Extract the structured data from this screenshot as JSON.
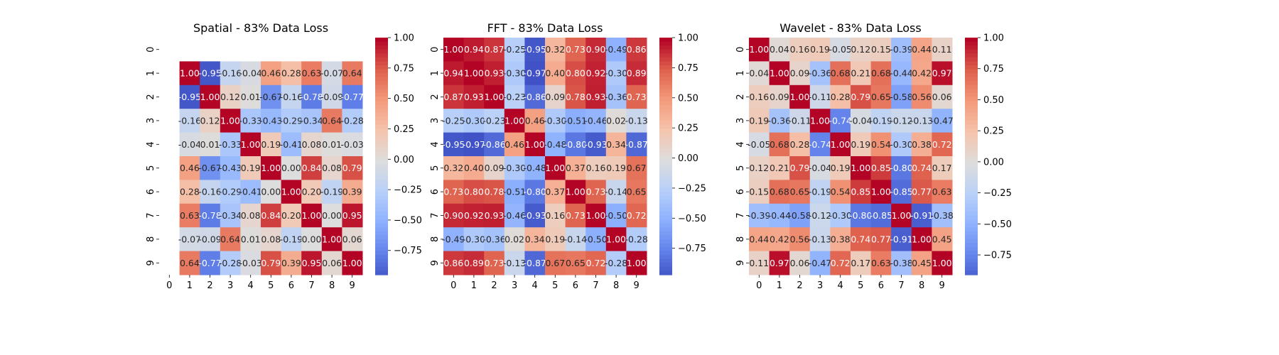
{
  "figure": {
    "background": "#ffffff"
  },
  "colormap": {
    "name": "coolwarm",
    "vmin": -1,
    "vmax": 1
  },
  "chart_data": [
    {
      "type": "heatmap",
      "title": "Spatial - 83% Data Loss",
      "xlabel": "",
      "ylabel": "",
      "x_ticks": [
        "0",
        "1",
        "2",
        "3",
        "4",
        "5",
        "6",
        "7",
        "8",
        "9"
      ],
      "y_ticks": [
        "0",
        "1",
        "2",
        "3",
        "4",
        "5",
        "6",
        "7",
        "8",
        "9"
      ],
      "colorbar": {
        "ticks": [
          1.0,
          0.75,
          0.5,
          0.25,
          0.0,
          -0.25,
          -0.5,
          -0.75
        ],
        "labels": [
          "1.00",
          "0.75",
          "0.50",
          "0.25",
          "0.00",
          "−0.25",
          "−0.50",
          "−0.75"
        ],
        "range": [
          -0.95,
          1.0
        ]
      },
      "values": [
        [
          null,
          null,
          null,
          null,
          null,
          null,
          null,
          null,
          null,
          null
        ],
        [
          null,
          1.0,
          -0.95,
          -0.16,
          -0.04,
          0.46,
          0.28,
          0.63,
          -0.07,
          0.64
        ],
        [
          null,
          -0.95,
          1.0,
          0.12,
          0.01,
          -0.67,
          -0.16,
          -0.78,
          -0.09,
          -0.77
        ],
        [
          null,
          -0.16,
          0.12,
          1.0,
          -0.33,
          -0.43,
          -0.29,
          -0.34,
          0.64,
          -0.28
        ],
        [
          null,
          -0.04,
          0.01,
          -0.33,
          1.0,
          0.19,
          -0.41,
          0.08,
          0.01,
          -0.03
        ],
        [
          null,
          0.46,
          -0.67,
          -0.43,
          0.19,
          1.0,
          0.0,
          0.84,
          0.08,
          0.79
        ],
        [
          null,
          0.28,
          -0.16,
          -0.29,
          -0.41,
          0.0,
          1.0,
          0.2,
          -0.19,
          0.39
        ],
        [
          null,
          0.63,
          -0.78,
          -0.34,
          0.08,
          0.84,
          0.2,
          1.0,
          0.0,
          0.95
        ],
        [
          null,
          -0.07,
          -0.09,
          0.64,
          0.01,
          0.08,
          -0.19,
          0.0,
          1.0,
          0.06
        ],
        [
          null,
          0.64,
          -0.77,
          -0.28,
          -0.03,
          0.79,
          0.39,
          0.95,
          0.06,
          1.0
        ]
      ],
      "labels": [
        [
          "",
          "",
          "",
          "",
          "",
          "",
          "",
          "",
          "",
          ""
        ],
        [
          "",
          "1.00",
          "-0.95",
          "-0.16",
          "-0.04",
          "0.46",
          "0.28",
          "0.63",
          "-0.07",
          "0.64"
        ],
        [
          "",
          "-0.95",
          "1.00",
          "0.12",
          "0.01",
          "-0.67",
          "-0.16",
          "-0.78",
          "-0.09",
          "-0.77"
        ],
        [
          "",
          "-0.16",
          "0.12",
          "1.00",
          "-0.33",
          "-0.43",
          "-0.29",
          "-0.34",
          "0.64",
          "-0.28"
        ],
        [
          "",
          "-0.04",
          "0.01",
          "-0.33",
          "1.00",
          "0.19",
          "-0.41",
          "0.08",
          "0.01",
          "-0.03"
        ],
        [
          "",
          "0.46",
          "-0.67",
          "-0.43",
          "0.19",
          "1.00",
          "0.00",
          "0.84",
          "0.08",
          "0.79"
        ],
        [
          "",
          "0.28",
          "-0.16",
          "-0.29",
          "-0.41",
          "0.00",
          "1.00",
          "0.20",
          "-0.19",
          "0.39"
        ],
        [
          "",
          "0.63",
          "-0.78",
          "-0.34",
          "0.08",
          "0.84",
          "0.20",
          "1.00",
          "0.00",
          "0.95"
        ],
        [
          "",
          "-0.07",
          "-0.09",
          "0.64",
          "0.01",
          "0.08",
          "-0.19",
          "0.00",
          "1.00",
          "0.06"
        ],
        [
          "",
          "0.64",
          "-0.77",
          "-0.28",
          "-0.03",
          "0.79",
          "0.39",
          "0.95",
          "0.06",
          "1.00"
        ]
      ]
    },
    {
      "type": "heatmap",
      "title": "FFT - 83% Data Loss",
      "xlabel": "",
      "ylabel": "",
      "x_ticks": [
        "0",
        "1",
        "2",
        "3",
        "4",
        "5",
        "6",
        "7",
        "8",
        "9"
      ],
      "y_ticks": [
        "0",
        "1",
        "2",
        "3",
        "4",
        "5",
        "6",
        "7",
        "8",
        "9"
      ],
      "colorbar": {
        "ticks": [
          1.0,
          0.75,
          0.5,
          0.25,
          0.0,
          -0.25,
          -0.5,
          -0.75
        ],
        "labels": [
          "1.00",
          "0.75",
          "0.50",
          "0.25",
          "0.00",
          "−0.25",
          "−0.50",
          "−0.75"
        ],
        "range": [
          -0.97,
          1.0
        ]
      },
      "values": [
        [
          1.0,
          0.94,
          0.87,
          -0.25,
          -0.95,
          0.32,
          0.73,
          0.9,
          -0.49,
          0.86
        ],
        [
          0.94,
          1.0,
          0.93,
          -0.3,
          -0.97,
          0.4,
          0.8,
          0.92,
          -0.3,
          0.89
        ],
        [
          0.87,
          0.93,
          1.0,
          -0.23,
          -0.86,
          0.09,
          0.78,
          0.93,
          -0.36,
          0.73
        ],
        [
          -0.25,
          -0.3,
          -0.23,
          1.0,
          0.46,
          -0.3,
          -0.51,
          -0.46,
          0.02,
          -0.13
        ],
        [
          -0.95,
          -0.97,
          -0.86,
          0.46,
          1.0,
          -0.48,
          -0.8,
          -0.93,
          0.34,
          -0.87
        ],
        [
          0.32,
          0.4,
          0.09,
          -0.3,
          -0.48,
          1.0,
          0.37,
          0.16,
          0.19,
          0.67
        ],
        [
          0.73,
          0.8,
          0.78,
          -0.51,
          -0.8,
          0.37,
          1.0,
          0.73,
          -0.14,
          0.65
        ],
        [
          0.9,
          0.92,
          0.93,
          -0.46,
          -0.93,
          0.16,
          0.73,
          1.0,
          -0.5,
          0.72
        ],
        [
          -0.49,
          -0.3,
          -0.36,
          0.02,
          0.34,
          0.19,
          -0.14,
          -0.5,
          1.0,
          -0.28
        ],
        [
          0.86,
          0.89,
          0.73,
          -0.13,
          -0.87,
          0.67,
          0.65,
          0.72,
          -0.28,
          1.0
        ]
      ],
      "labels": [
        [
          "1.00",
          "0.94",
          "0.87",
          "-0.25",
          "-0.95",
          "0.32",
          "0.73",
          "0.90",
          "-0.49",
          "0.86"
        ],
        [
          "0.94",
          "1.00",
          "0.93",
          "-0.30",
          "-0.97",
          "0.40",
          "0.80",
          "0.92",
          "-0.30",
          "0.89"
        ],
        [
          "0.87",
          "0.93",
          "1.00",
          "-0.23",
          "-0.86",
          "0.09",
          "0.78",
          "0.93",
          "-0.36",
          "0.73"
        ],
        [
          "-0.25",
          "-0.30",
          "-0.23",
          "1.00",
          "0.46",
          "-0.30",
          "-0.51",
          "-0.46",
          "0.02",
          "-0.13"
        ],
        [
          "-0.95",
          "-0.97",
          "-0.86",
          "0.46",
          "1.00",
          "-0.48",
          "-0.80",
          "-0.93",
          "0.34",
          "-0.87"
        ],
        [
          "0.32",
          "0.40",
          "0.09",
          "-0.30",
          "-0.48",
          "1.00",
          "0.37",
          "0.16",
          "0.19",
          "0.67"
        ],
        [
          "0.73",
          "0.80",
          "0.78",
          "-0.51",
          "-0.80",
          "0.37",
          "1.00",
          "0.73",
          "-0.14",
          "0.65"
        ],
        [
          "0.90",
          "0.92",
          "0.93",
          "-0.46",
          "-0.93",
          "0.16",
          "0.73",
          "1.00",
          "-0.50",
          "0.72"
        ],
        [
          "-0.49",
          "-0.30",
          "-0.36",
          "0.02",
          "0.34",
          "0.19",
          "-0.14",
          "-0.50",
          "1.00",
          "-0.28"
        ],
        [
          "0.86",
          "0.89",
          "0.73",
          "-0.13",
          "-0.87",
          "0.67",
          "0.65",
          "0.72",
          "-0.28",
          "1.00"
        ]
      ]
    },
    {
      "type": "heatmap",
      "title": "Wavelet - 83% Data Loss",
      "xlabel": "",
      "ylabel": "",
      "x_ticks": [
        "0",
        "1",
        "2",
        "3",
        "4",
        "5",
        "6",
        "7",
        "8",
        "9"
      ],
      "y_ticks": [
        "0",
        "1",
        "2",
        "3",
        "4",
        "5",
        "6",
        "7",
        "8",
        "9"
      ],
      "colorbar": {
        "ticks": [
          1.0,
          0.75,
          0.5,
          0.25,
          0.0,
          -0.25,
          -0.5,
          -0.75
        ],
        "labels": [
          "1.00",
          "0.75",
          "0.50",
          "0.25",
          "0.00",
          "−0.25",
          "−0.50",
          "−0.75"
        ],
        "range": [
          -0.91,
          1.0
        ]
      },
      "values": [
        [
          1.0,
          0.04,
          0.16,
          0.19,
          -0.05,
          0.12,
          0.15,
          -0.39,
          0.44,
          0.11
        ],
        [
          0.04,
          1.0,
          0.09,
          -0.36,
          0.68,
          0.21,
          0.68,
          -0.44,
          0.42,
          0.97
        ],
        [
          0.16,
          0.09,
          1.0,
          -0.11,
          0.28,
          0.79,
          0.65,
          -0.58,
          0.56,
          0.06
        ],
        [
          0.19,
          -0.36,
          -0.11,
          1.0,
          -0.74,
          -0.04,
          -0.19,
          -0.12,
          -0.13,
          -0.47
        ],
        [
          -0.05,
          0.68,
          0.28,
          -0.74,
          1.0,
          0.19,
          0.54,
          -0.3,
          0.38,
          0.72
        ],
        [
          0.12,
          0.21,
          0.79,
          -0.04,
          0.19,
          1.0,
          0.85,
          -0.8,
          0.74,
          0.17
        ],
        [
          0.15,
          0.68,
          0.65,
          -0.19,
          0.54,
          0.85,
          1.0,
          -0.85,
          0.77,
          0.63
        ],
        [
          -0.39,
          -0.44,
          -0.58,
          -0.12,
          -0.3,
          -0.8,
          -0.85,
          1.0,
          -0.91,
          -0.38
        ],
        [
          0.44,
          0.42,
          0.56,
          -0.13,
          0.38,
          0.74,
          0.77,
          -0.91,
          1.0,
          0.45
        ],
        [
          0.11,
          0.97,
          0.06,
          -0.47,
          0.72,
          0.17,
          0.63,
          -0.38,
          0.45,
          1.0
        ]
      ],
      "labels": [
        [
          "1.00",
          "0.04",
          "0.16",
          "0.19",
          "-0.05",
          "0.12",
          "0.15",
          "-0.39",
          "0.44",
          "0.11"
        ],
        [
          "0.04",
          "1.00",
          "0.09",
          "-0.36",
          "0.68",
          "0.21",
          "0.68",
          "-0.44",
          "0.42",
          "0.97"
        ],
        [
          "0.16",
          "0.09",
          "1.00",
          "-0.11",
          "0.28",
          "0.79",
          "0.65",
          "-0.58",
          "0.56",
          "0.06"
        ],
        [
          "0.19",
          "-0.36",
          "-0.11",
          "1.00",
          "-0.74",
          "-0.04",
          "-0.19",
          "-0.12",
          "-0.13",
          "-0.47"
        ],
        [
          "-0.05",
          "0.68",
          "0.28",
          "-0.74",
          "1.00",
          "0.19",
          "0.54",
          "-0.30",
          "0.38",
          "0.72"
        ],
        [
          "0.12",
          "0.21",
          "0.79",
          "-0.04",
          "0.19",
          "1.00",
          "0.85",
          "-0.80",
          "0.74",
          "0.17"
        ],
        [
          "0.15",
          "0.68",
          "0.65",
          "-0.19",
          "0.54",
          "0.85",
          "1.00",
          "-0.85",
          "0.77",
          "0.63"
        ],
        [
          "-0.39",
          "-0.44",
          "-0.58",
          "-0.12",
          "-0.30",
          "-0.80",
          "-0.85",
          "1.00",
          "-0.91",
          "-0.38"
        ],
        [
          "0.44",
          "0.42",
          "0.56",
          "-0.13",
          "0.38",
          "0.74",
          "0.77",
          "-0.91",
          "1.00",
          "0.45"
        ],
        [
          "0.11",
          "0.97",
          "0.06",
          "-0.47",
          "0.72",
          "0.17",
          "0.63",
          "-0.38",
          "0.45",
          "1.00"
        ]
      ]
    }
  ]
}
